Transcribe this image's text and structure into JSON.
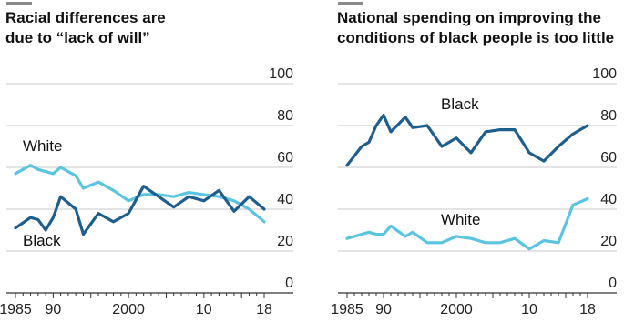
{
  "chart_data": [
    {
      "type": "line",
      "title": "Racial differences are\ndue to “lack of will”",
      "x_tick_labels": [
        "1985",
        "90",
        "2000",
        "10",
        "18"
      ],
      "y_tick_labels": [
        "0",
        "20",
        "40",
        "60",
        "80",
        "100"
      ],
      "ylim": [
        0,
        100
      ],
      "xlim": [
        1985,
        2018
      ],
      "grid": true,
      "series": [
        {
          "name": "White",
          "color": "#5bc4e0",
          "x": [
            1985,
            1987,
            1988,
            1989,
            1990,
            1991,
            1993,
            1994,
            1996,
            1998,
            2000,
            2002,
            2004,
            2006,
            2008,
            2010,
            2012,
            2014,
            2016,
            2018
          ],
          "y": [
            57,
            61,
            59,
            58,
            57,
            60,
            56,
            50,
            53,
            49,
            44,
            47,
            47,
            46,
            48,
            47,
            46,
            44,
            40,
            34
          ]
        },
        {
          "name": "Black",
          "color": "#1e5e8c",
          "x": [
            1985,
            1987,
            1988,
            1989,
            1990,
            1991,
            1993,
            1994,
            1996,
            1998,
            2000,
            2002,
            2004,
            2006,
            2008,
            2010,
            2012,
            2014,
            2016,
            2018
          ],
          "y": [
            31,
            36,
            35,
            30,
            36,
            46,
            40,
            28,
            38,
            34,
            38,
            51,
            46,
            41,
            46,
            44,
            49,
            39,
            46,
            40
          ]
        }
      ]
    },
    {
      "type": "line",
      "title": "National spending on improving the\nconditions of black people is too little",
      "x_tick_labels": [
        "1985",
        "90",
        "2000",
        "10",
        "18"
      ],
      "y_tick_labels": [
        "0",
        "20",
        "40",
        "60",
        "80",
        "100"
      ],
      "ylim": [
        0,
        100
      ],
      "xlim": [
        1985,
        2018
      ],
      "grid": true,
      "series": [
        {
          "name": "Black",
          "color": "#1e5e8c",
          "x": [
            1985,
            1987,
            1988,
            1989,
            1990,
            1991,
            1993,
            1994,
            1996,
            1998,
            2000,
            2002,
            2004,
            2006,
            2008,
            2010,
            2012,
            2014,
            2016,
            2018
          ],
          "y": [
            61,
            70,
            72,
            80,
            85,
            77,
            84,
            79,
            80,
            70,
            74,
            67,
            77,
            78,
            78,
            67,
            63,
            70,
            76,
            80
          ]
        },
        {
          "name": "White",
          "color": "#5bc4e0",
          "x": [
            1985,
            1987,
            1988,
            1989,
            1990,
            1991,
            1993,
            1994,
            1996,
            1998,
            2000,
            2002,
            2004,
            2006,
            2008,
            2010,
            2012,
            2014,
            2016,
            2018
          ],
          "y": [
            26,
            28,
            29,
            28,
            28,
            32,
            27,
            29,
            24,
            24,
            27,
            26,
            24,
            24,
            26,
            21,
            25,
            24,
            42,
            45
          ]
        }
      ]
    }
  ]
}
